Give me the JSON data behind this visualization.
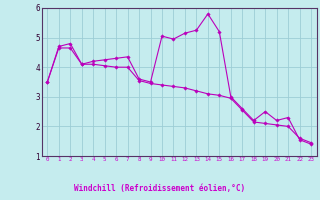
{
  "xlabel": "Windchill (Refroidissement éolien,°C)",
  "background_color": "#c5ecee",
  "plot_bg_color": "#c5ecee",
  "grid_color": "#9dcdd5",
  "line_color": "#bb00bb",
  "axis_bar_color": "#330055",
  "xlim": [
    -0.5,
    23.5
  ],
  "ylim": [
    1,
    6
  ],
  "xtick_vals": [
    0,
    1,
    2,
    3,
    4,
    5,
    6,
    7,
    8,
    9,
    10,
    11,
    12,
    13,
    14,
    15,
    16,
    17,
    18,
    19,
    20,
    21,
    22,
    23
  ],
  "ytick_vals": [
    1,
    2,
    3,
    4,
    5,
    6
  ],
  "line1_x": [
    0,
    1,
    2,
    3,
    4,
    5,
    6,
    7,
    8,
    9,
    10,
    11,
    12,
    13,
    14,
    15,
    16,
    17,
    18,
    19,
    20,
    21,
    22,
    23
  ],
  "line1_y": [
    3.5,
    4.7,
    4.8,
    4.1,
    4.2,
    4.25,
    4.3,
    4.35,
    3.6,
    3.5,
    5.05,
    4.95,
    5.15,
    5.25,
    5.8,
    5.2,
    3.0,
    2.6,
    2.2,
    2.5,
    2.2,
    2.3,
    1.55,
    1.4
  ],
  "line2_x": [
    0,
    1,
    2,
    3,
    4,
    5,
    6,
    7,
    8,
    9,
    10,
    11,
    12,
    13,
    14,
    15,
    16,
    17,
    18,
    19,
    20,
    21,
    22,
    23
  ],
  "line2_y": [
    3.5,
    4.65,
    4.65,
    4.1,
    4.1,
    4.05,
    4.0,
    4.0,
    3.55,
    3.45,
    3.4,
    3.35,
    3.3,
    3.2,
    3.1,
    3.05,
    2.95,
    2.55,
    2.15,
    2.1,
    2.05,
    2.0,
    1.6,
    1.45
  ]
}
